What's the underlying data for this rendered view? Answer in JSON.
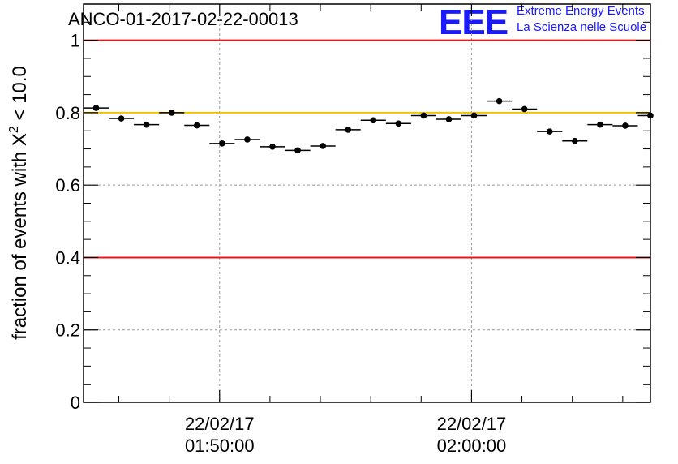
{
  "chart_data": {
    "type": "scatter",
    "title": "ANCO-01-2017-02-22-00013",
    "ylabel_main": "fraction of events with X",
    "ylabel_sup": "2",
    "ylabel_tail": " < 10.0",
    "xlabel": "",
    "ylim": [
      0,
      1.1
    ],
    "xlim": [
      0,
      22.5
    ],
    "grid": true,
    "y_ticks": [
      0,
      0.2,
      0.4,
      0.6,
      0.8,
      1
    ],
    "y_tick_labels": [
      "0",
      "0.2",
      "0.4",
      "0.6",
      "0.8",
      "1"
    ],
    "x_major_ticks": [
      {
        "x": 5.4,
        "date": "22/02/17",
        "time": "01:50:00"
      },
      {
        "x": 15.4,
        "date": "22/02/17",
        "time": "02:00:00"
      }
    ],
    "x_minor_ticks": [
      1.4,
      3.4,
      7.4,
      9.4,
      11.4,
      13.4,
      17.4,
      19.4,
      21.4
    ],
    "reference_lines": [
      {
        "name": "upper-limit-line",
        "y": 1.0,
        "color": "#e8181a"
      },
      {
        "name": "target-line",
        "y": 0.8,
        "color": "#f5c200"
      },
      {
        "name": "lower-limit-line",
        "y": 0.4,
        "color": "#e8181a"
      }
    ],
    "series": [
      {
        "name": "fraction",
        "x": [
          0.5,
          1.5,
          2.5,
          3.5,
          4.5,
          5.5,
          6.5,
          7.5,
          8.5,
          9.5,
          10.5,
          11.5,
          12.5,
          13.5,
          14.5,
          15.5,
          16.5,
          17.5,
          18.5,
          19.5,
          20.5,
          21.5,
          22.5
        ],
        "x_half_width": 0.5,
        "values": [
          0.813,
          0.784,
          0.767,
          0.8,
          0.765,
          0.715,
          0.726,
          0.706,
          0.696,
          0.708,
          0.753,
          0.779,
          0.77,
          0.792,
          0.782,
          0.792,
          0.832,
          0.81,
          0.748,
          0.722,
          0.767,
          0.764,
          0.792
        ]
      }
    ]
  },
  "logo": {
    "letters": "EEE",
    "line1": "Extreme Energy Events",
    "line2": "La Scienza nelle Scuole",
    "color": "#1a1aff"
  }
}
